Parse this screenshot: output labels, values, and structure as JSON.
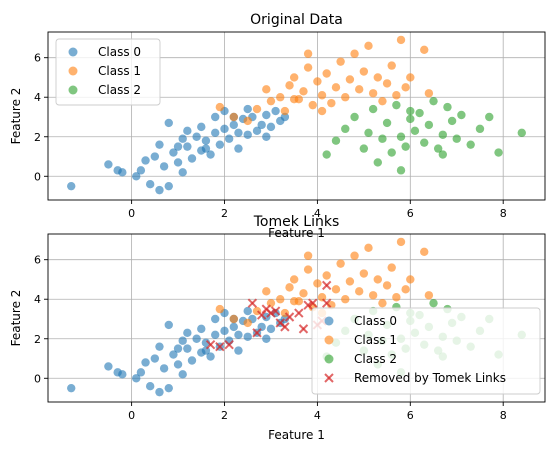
{
  "chart_data": [
    {
      "type": "scatter",
      "title": "Original Data",
      "xlabel": "Feature 1",
      "ylabel": "Feature 2",
      "xlim": [
        -1.8,
        8.9
      ],
      "ylim": [
        -1.2,
        7.3
      ],
      "xticks": [
        0,
        2,
        4,
        6,
        8
      ],
      "yticks": [
        0,
        2,
        4,
        6
      ],
      "grid": true,
      "legend_position": "top-left",
      "series": [
        {
          "name": "Class 0",
          "color": "#1f77b4",
          "marker": "circle",
          "points": [
            [
              -1.3,
              -0.5
            ],
            [
              -0.5,
              0.6
            ],
            [
              -0.3,
              0.3
            ],
            [
              -0.2,
              0.2
            ],
            [
              0.1,
              0.0
            ],
            [
              0.2,
              0.3
            ],
            [
              0.3,
              0.8
            ],
            [
              0.4,
              -0.4
            ],
            [
              0.5,
              1.0
            ],
            [
              0.6,
              -0.7
            ],
            [
              0.7,
              0.5
            ],
            [
              0.8,
              -0.5
            ],
            [
              0.9,
              1.2
            ],
            [
              1.0,
              0.7
            ],
            [
              1.1,
              0.2
            ],
            [
              1.2,
              1.5
            ],
            [
              1.3,
              0.9
            ],
            [
              1.4,
              2.0
            ],
            [
              1.5,
              1.3
            ],
            [
              1.6,
              1.8
            ],
            [
              1.7,
              1.1
            ],
            [
              1.8,
              2.2
            ],
            [
              1.9,
              1.6
            ],
            [
              2.0,
              2.4
            ],
            [
              2.1,
              1.9
            ],
            [
              2.2,
              2.6
            ],
            [
              2.3,
              1.4
            ],
            [
              2.4,
              2.9
            ],
            [
              2.5,
              2.1
            ],
            [
              2.6,
              3.0
            ],
            [
              2.7,
              2.3
            ],
            [
              2.8,
              2.6
            ],
            [
              2.9,
              3.1
            ],
            [
              3.0,
              2.5
            ],
            [
              3.1,
              3.3
            ],
            [
              3.2,
              2.8
            ],
            [
              1.0,
              1.5
            ],
            [
              1.2,
              2.3
            ],
            [
              0.8,
              2.7
            ],
            [
              1.5,
              2.5
            ],
            [
              1.8,
              3.0
            ],
            [
              2.0,
              3.3
            ],
            [
              2.2,
              3.0
            ],
            [
              2.5,
              3.4
            ],
            [
              0.6,
              1.6
            ],
            [
              1.1,
              1.9
            ],
            [
              1.6,
              1.4
            ],
            [
              2.3,
              2.2
            ],
            [
              2.9,
              2.0
            ],
            [
              3.3,
              3.0
            ]
          ]
        },
        {
          "name": "Class 1",
          "color": "#ff7f0e",
          "marker": "circle",
          "points": [
            [
              1.9,
              3.5
            ],
            [
              2.2,
              3.0
            ],
            [
              2.5,
              2.8
            ],
            [
              2.7,
              3.4
            ],
            [
              2.9,
              4.4
            ],
            [
              3.0,
              3.8
            ],
            [
              3.2,
              4.0
            ],
            [
              3.3,
              3.3
            ],
            [
              3.4,
              4.6
            ],
            [
              3.5,
              5.0
            ],
            [
              3.6,
              3.9
            ],
            [
              3.7,
              4.3
            ],
            [
              3.8,
              5.5
            ],
            [
              3.9,
              3.6
            ],
            [
              4.0,
              4.8
            ],
            [
              4.1,
              4.1
            ],
            [
              4.2,
              5.2
            ],
            [
              4.3,
              3.7
            ],
            [
              4.4,
              4.5
            ],
            [
              4.5,
              5.8
            ],
            [
              4.6,
              4.0
            ],
            [
              4.7,
              4.9
            ],
            [
              4.8,
              6.2
            ],
            [
              4.9,
              4.4
            ],
            [
              5.0,
              5.3
            ],
            [
              5.1,
              6.6
            ],
            [
              5.2,
              4.2
            ],
            [
              5.3,
              5.0
            ],
            [
              5.4,
              3.8
            ],
            [
              5.5,
              4.7
            ],
            [
              5.6,
              5.6
            ],
            [
              5.7,
              4.1
            ],
            [
              5.8,
              6.9
            ],
            [
              5.9,
              4.5
            ],
            [
              6.0,
              5.0
            ],
            [
              6.3,
              6.4
            ],
            [
              6.4,
              4.2
            ],
            [
              3.8,
              6.2
            ],
            [
              4.1,
              3.3
            ],
            [
              3.5,
              3.9
            ]
          ]
        },
        {
          "name": "Class 2",
          "color": "#2ca02c",
          "marker": "circle",
          "points": [
            [
              4.2,
              1.1
            ],
            [
              4.4,
              1.8
            ],
            [
              4.6,
              2.4
            ],
            [
              4.8,
              3.0
            ],
            [
              5.0,
              1.4
            ],
            [
              5.1,
              2.2
            ],
            [
              5.2,
              3.4
            ],
            [
              5.3,
              0.7
            ],
            [
              5.4,
              1.9
            ],
            [
              5.5,
              2.7
            ],
            [
              5.6,
              1.2
            ],
            [
              5.7,
              3.6
            ],
            [
              5.8,
              2.0
            ],
            [
              5.9,
              1.5
            ],
            [
              6.0,
              2.9
            ],
            [
              6.1,
              2.3
            ],
            [
              6.2,
              3.2
            ],
            [
              6.3,
              1.7
            ],
            [
              6.4,
              2.6
            ],
            [
              6.5,
              3.8
            ],
            [
              6.6,
              1.4
            ],
            [
              6.7,
              2.1
            ],
            [
              6.8,
              3.5
            ],
            [
              6.9,
              2.8
            ],
            [
              7.0,
              1.9
            ],
            [
              7.1,
              3.1
            ],
            [
              7.3,
              1.6
            ],
            [
              7.5,
              2.4
            ],
            [
              7.7,
              3.0
            ],
            [
              7.9,
              1.2
            ],
            [
              8.4,
              2.2
            ],
            [
              6.0,
              3.3
            ],
            [
              5.8,
              0.3
            ],
            [
              6.7,
              1.1
            ]
          ]
        }
      ]
    },
    {
      "type": "scatter",
      "title": "Tomek Links",
      "xlabel": "Feature 1",
      "ylabel": "Feature 2",
      "xlim": [
        -1.8,
        8.9
      ],
      "ylim": [
        -1.2,
        7.3
      ],
      "xticks": [
        0,
        2,
        4,
        6,
        8
      ],
      "yticks": [
        0,
        2,
        4,
        6
      ],
      "grid": true,
      "legend_position": "bottom-right",
      "series": [
        {
          "name": "Class 0",
          "color": "#1f77b4",
          "marker": "circle",
          "same_as_original": true
        },
        {
          "name": "Class 1",
          "color": "#ff7f0e",
          "marker": "circle",
          "same_as_original": true
        },
        {
          "name": "Class 2",
          "color": "#2ca02c",
          "marker": "circle",
          "same_as_original": true
        },
        {
          "name": "Removed by Tomek Links",
          "color": "#d62728",
          "marker": "x",
          "points": [
            [
              1.7,
              1.7
            ],
            [
              1.9,
              1.6
            ],
            [
              2.1,
              1.7
            ],
            [
              2.6,
              3.8
            ],
            [
              2.8,
              3.2
            ],
            [
              2.9,
              3.5
            ],
            [
              3.0,
              3.3
            ],
            [
              3.1,
              3.4
            ],
            [
              3.2,
              2.8
            ],
            [
              3.3,
              2.6
            ],
            [
              3.4,
              3.1
            ],
            [
              3.6,
              3.3
            ],
            [
              3.8,
              3.7
            ],
            [
              3.9,
              3.8
            ],
            [
              4.0,
              2.7
            ],
            [
              4.1,
              2.9
            ],
            [
              4.2,
              4.7
            ],
            [
              4.2,
              3.8
            ],
            [
              3.7,
              2.5
            ],
            [
              2.7,
              2.3
            ]
          ]
        }
      ]
    }
  ]
}
